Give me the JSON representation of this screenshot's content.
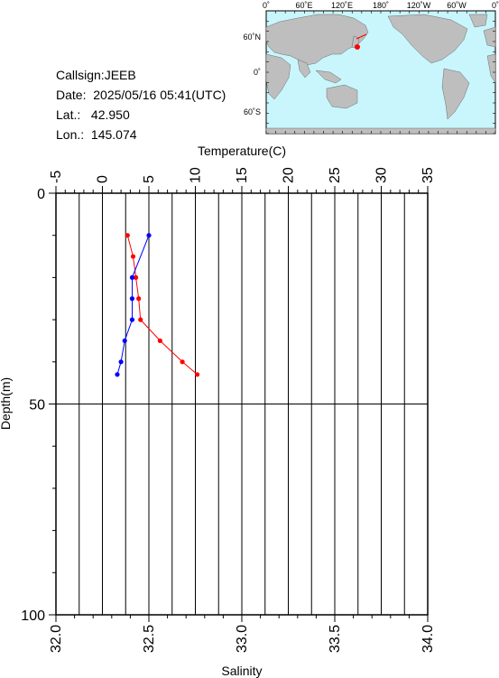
{
  "info": {
    "callsign_label": "Callsign:",
    "callsign": "JEEB",
    "date_label": "Date:",
    "date": "2025/05/16 05:41(UTC)",
    "lat_label": "Lat.:",
    "lat": "42.950",
    "lon_label": "Lon.:",
    "lon": "145.074"
  },
  "map": {
    "top_labels": [
      "0˚",
      "60˚E",
      "120˚E",
      "180˚",
      "120˚W",
      "60˚W",
      "0˚"
    ],
    "left_labels": [
      "60˚N",
      "0˚",
      "60˚S"
    ],
    "ocean_color": "#c8f6fc",
    "land_color": "#bebebe",
    "marker_color": "#ff0000"
  },
  "chart_data": {
    "type": "line",
    "xlabel_top": "Temperature(C)",
    "xlabel_bottom": "Salinity",
    "ylabel": "Depth(m)",
    "temperature_ticks": [
      "-5",
      "0",
      "5",
      "10",
      "15",
      "20",
      "25",
      "30",
      "35"
    ],
    "temperature_range": [
      -5,
      35
    ],
    "salinity_ticks": [
      "32.0",
      "32.5",
      "33.0",
      "33.5",
      "34.0"
    ],
    "salinity_range": [
      32.0,
      34.0
    ],
    "depth_ticks": [
      "0",
      "50",
      "100"
    ],
    "depth_range": [
      0,
      100
    ],
    "series": [
      {
        "name": "Temperature",
        "axis": "temperature",
        "color": "#ff0000",
        "points": [
          {
            "depth": 10,
            "value": 2.7
          },
          {
            "depth": 15,
            "value": 3.3
          },
          {
            "depth": 20,
            "value": 3.6
          },
          {
            "depth": 25,
            "value": 3.9
          },
          {
            "depth": 30,
            "value": 4.1
          },
          {
            "depth": 35,
            "value": 6.2
          },
          {
            "depth": 40,
            "value": 8.6
          },
          {
            "depth": 43,
            "value": 10.2
          }
        ]
      },
      {
        "name": "Salinity",
        "axis": "salinity",
        "color": "#0000ff",
        "points": [
          {
            "depth": 10,
            "value": 32.5
          },
          {
            "depth": 20,
            "value": 32.41
          },
          {
            "depth": 25,
            "value": 32.41
          },
          {
            "depth": 30,
            "value": 32.41
          },
          {
            "depth": 35,
            "value": 32.37
          },
          {
            "depth": 40,
            "value": 32.35
          },
          {
            "depth": 43,
            "value": 32.33
          }
        ]
      }
    ]
  }
}
